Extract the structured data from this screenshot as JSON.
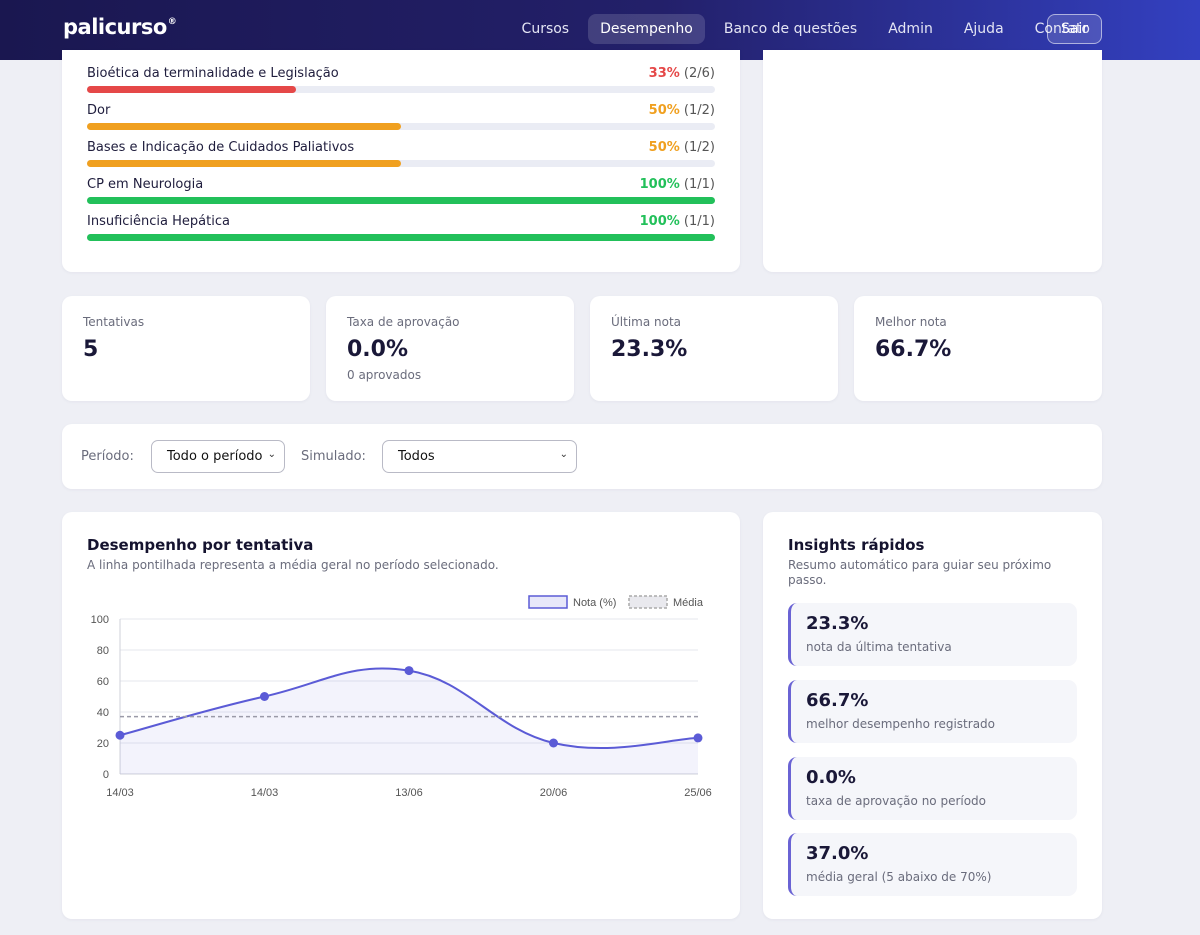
{
  "nav": {
    "logo": "palicurso",
    "logo_mark": "®",
    "links": [
      "Cursos",
      "Desempenho",
      "Banco de questões",
      "Admin",
      "Ajuda",
      "Contato"
    ],
    "active": "Desempenho",
    "logout": "Sair"
  },
  "topics": [
    {
      "name": "Bioética da terminalidade e Legislação",
      "pct": "33%",
      "count": "(2/6)",
      "fraction": 0.333,
      "color": "#e54848"
    },
    {
      "name": "Dor",
      "pct": "50%",
      "count": "(1/2)",
      "fraction": 0.5,
      "color": "#f0a020"
    },
    {
      "name": "Bases e Indicação de Cuidados Paliativos",
      "pct": "50%",
      "count": "(1/2)",
      "fraction": 0.5,
      "color": "#f0a020"
    },
    {
      "name": "CP em Neurologia",
      "pct": "100%",
      "count": "(1/1)",
      "fraction": 1.0,
      "color": "#22c05a"
    },
    {
      "name": "Insuficiência Hepática",
      "pct": "100%",
      "count": "(1/1)",
      "fraction": 1.0,
      "color": "#22c05a"
    }
  ],
  "stats": [
    {
      "label": "Tentativas",
      "value": "5",
      "sub": ""
    },
    {
      "label": "Taxa de aprovação",
      "value": "0.0%",
      "sub": "0 aprovados"
    },
    {
      "label": "Última nota",
      "value": "23.3%",
      "sub": ""
    },
    {
      "label": "Melhor nota",
      "value": "66.7%",
      "sub": ""
    }
  ],
  "filters": {
    "period_label": "Período:",
    "period_value": "Todo o período",
    "sim_label": "Simulado:",
    "sim_value": "Todos"
  },
  "chart_section": {
    "title": "Desempenho por tentativa",
    "subtitle": "A linha pontilhada representa a média geral no período selecionado."
  },
  "chart_data": {
    "type": "line",
    "categories": [
      "14/03",
      "14/03",
      "13/06",
      "20/06",
      "25/06"
    ],
    "series": [
      {
        "name": "Nota (%)",
        "values": [
          25,
          50,
          66.7,
          20,
          23.3
        ],
        "color": "#5b5bd6"
      },
      {
        "name": "Média",
        "values": [
          37,
          37,
          37,
          37,
          37
        ],
        "color": "#9a9aa8",
        "style": "dashed"
      }
    ],
    "ylim": [
      0,
      100
    ],
    "yticks": [
      0,
      20,
      40,
      60,
      80,
      100
    ],
    "legend_position": "top-right",
    "grid": true
  },
  "insights": {
    "title": "Insights rápidos",
    "subtitle": "Resumo automático para guiar seu próximo passo.",
    "items": [
      {
        "value": "23.3%",
        "label": "nota da última tentativa"
      },
      {
        "value": "66.7%",
        "label": "melhor desempenho registrado"
      },
      {
        "value": "0.0%",
        "label": "taxa de aprovação no período"
      },
      {
        "value": "37.0%",
        "label": "média geral (5 abaixo de 70%)"
      }
    ]
  },
  "colors": {
    "accent": "#5b5bd6",
    "red": "#e54848",
    "orange": "#f0a020",
    "green": "#22c05a"
  }
}
